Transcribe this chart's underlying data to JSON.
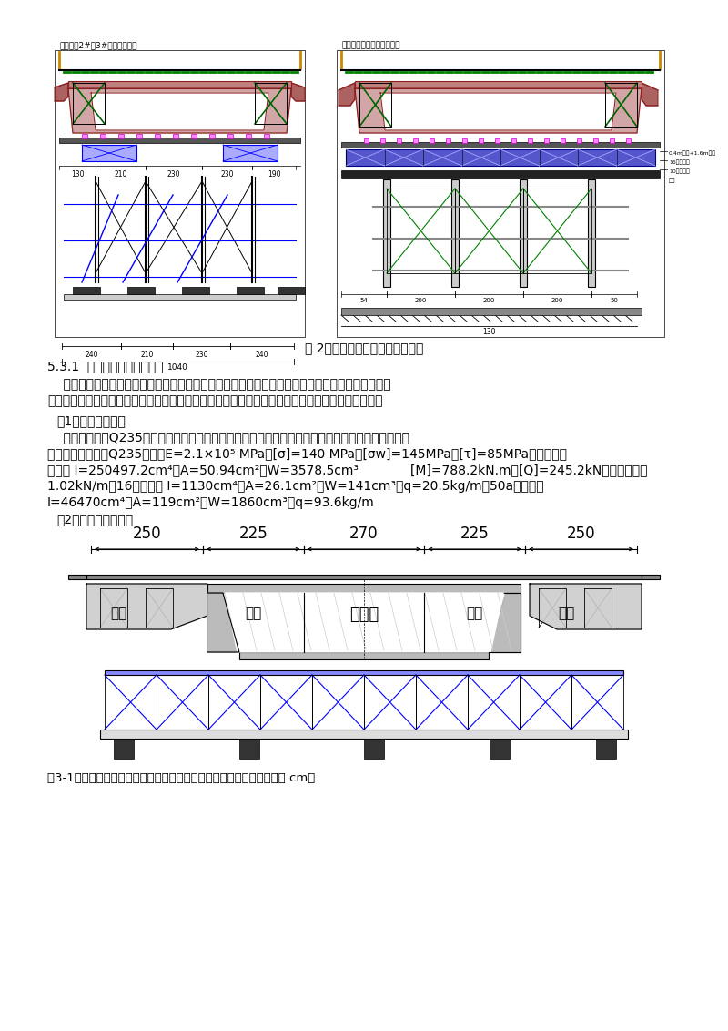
{
  "page_bg": "#ffffff",
  "top_image_caption": "图 2：钢管支架现浇箱梁横断面图",
  "section_title": "5.3.1  钢管支架的安全性检算",
  "para1": "    施工前，根据桥梁梁部设计资料、现场墩台高度、墩台间地形及地质情况以及施工方案的要求进行",
  "para2": "钢管支架的设计及安全性计算，确保方案可行，经济合理、安全稳定，钢管支架的设计及检算如下：",
  "sub1": "（1）各种力学参数",
  "sub1_para1": "    支架钢材采用Q235普通碳素钢材料和贝雷梁，根据支架的实际受力情况进行分别对箱梁不同部位下",
  "sub1_para2_line1": "的结构进行检算。Q235钢材：E=2.1×10⁵ MPa，[σ]=140 MPa，[σw]=145MPa，[τ]=85MPa。单排单层",
  "sub1_para2_line2": "贝雷梁 I=250497.2cm⁴，A=50.94cm²，W=3578.5cm³             [M]=788.2kN.m，[Q]=245.2kN，贝雷梁自重",
  "sub1_para2_line3": "1.02kN/m；16号工字钢 I=1130cm⁴，A=26.1cm²，W=141cm³，q=20.5kg/m；50a号工字钢",
  "sub1_para2_line4": "I=46470cm⁴，A=119cm²，W=1860cm³，q=93.6kg/m",
  "sub2": "（2）贝雷梁受力检算",
  "bottom_caption": "图3-1：一孔箱梁施工荷载横向翼板、腹板、底板区域分段示意图（单位 cm）",
  "dim_labels": [
    "250",
    "225",
    "270",
    "225",
    "250"
  ],
  "box_labels_left": [
    "翼板",
    "腹板"
  ],
  "box_labels_mid": [
    "顶底板"
  ],
  "box_labels_right": [
    "腹板",
    "翼板"
  ],
  "left_diagram_title": "钢管支架2#、3#墩身横断面图",
  "right_diagram_title": "钢管支架箱梁跨中横断面图",
  "bottom_dim_labels": [
    "240",
    "210",
    "230",
    "240"
  ],
  "bottom_total": "1040"
}
